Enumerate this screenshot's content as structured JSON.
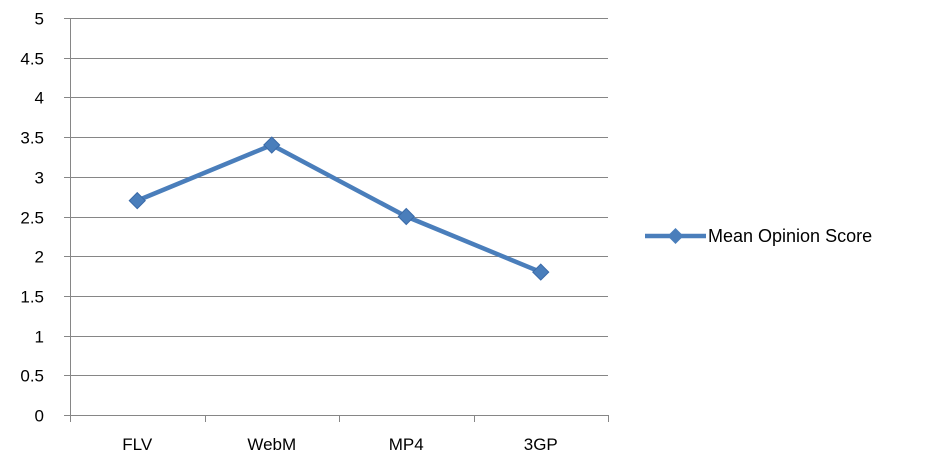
{
  "chart_data": {
    "type": "line",
    "categories": [
      "FLV",
      "WebM",
      "MP4",
      "3GP"
    ],
    "series": [
      {
        "name": "Mean Opinion Score",
        "values": [
          2.7,
          3.4,
          2.5,
          1.8
        ],
        "color": "#4a7ebb",
        "marker": "diamond"
      }
    ],
    "ylim": [
      0,
      5
    ],
    "yticks": [
      "0",
      "0.5",
      "1",
      "1.5",
      "2",
      "2.5",
      "3",
      "3.5",
      "4",
      "4.5",
      "5"
    ],
    "grid": true,
    "legend_position": "right",
    "title": "",
    "xlabel": "",
    "ylabel": ""
  }
}
